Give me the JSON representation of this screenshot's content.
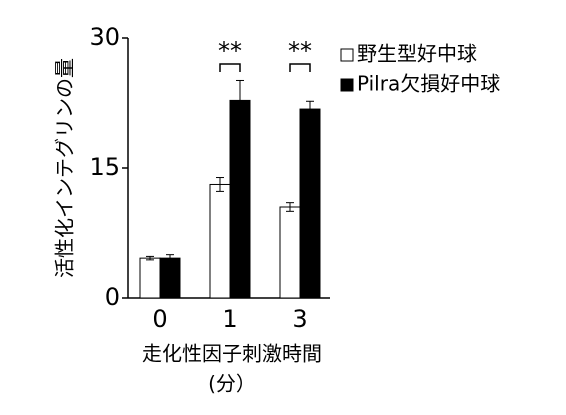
{
  "chart_data": {
    "type": "bar",
    "ylabel": "活性化インテグリンの量",
    "xlabel": [
      "走化性因子刺激時間",
      "(分）"
    ],
    "categories": [
      "0",
      "1",
      "3"
    ],
    "series": [
      {
        "name": "野生型好中球",
        "color": "#ffffff",
        "values": [
          4.6,
          13.1,
          10.5
        ],
        "errors": [
          0.2,
          0.8,
          0.5
        ]
      },
      {
        "name": "Pilra欠損好中球",
        "color": "#000000",
        "values": [
          4.6,
          22.8,
          21.8
        ],
        "errors": [
          0.4,
          2.3,
          0.9
        ]
      }
    ],
    "significance": [
      null,
      "**",
      "**"
    ],
    "ylim": [
      0,
      30
    ],
    "yticks": [
      0,
      15,
      30
    ]
  }
}
